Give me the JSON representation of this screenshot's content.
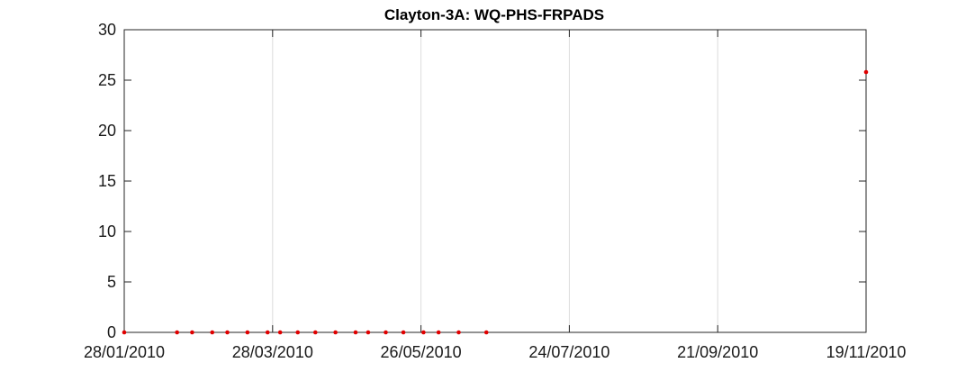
{
  "chart_data": {
    "type": "scatter",
    "title": "Clayton-3A: WQ-PHS-FRPADS",
    "xlabel": "",
    "ylabel": "",
    "x_axis_type": "date",
    "xlim": [
      "2010-01-28",
      "2010-11-19"
    ],
    "ylim": [
      0,
      30
    ],
    "x_ticks": [
      "2010-01-28",
      "2010-03-28",
      "2010-05-26",
      "2010-07-24",
      "2010-09-21",
      "2010-11-19"
    ],
    "x_tick_labels": [
      "28/01/2010",
      "28/03/2010",
      "26/05/2010",
      "24/07/2010",
      "21/09/2010",
      "19/11/2010"
    ],
    "y_ticks": [
      0,
      5,
      10,
      15,
      20,
      25,
      30
    ],
    "grid": true,
    "legend": "none",
    "marker_color": "#e00000",
    "series": [
      {
        "points": [
          {
            "x": "2010-01-28",
            "y": 0
          },
          {
            "x": "2010-02-18",
            "y": 0
          },
          {
            "x": "2010-02-24",
            "y": 0
          },
          {
            "x": "2010-03-04",
            "y": 0
          },
          {
            "x": "2010-03-10",
            "y": 0
          },
          {
            "x": "2010-03-18",
            "y": 0
          },
          {
            "x": "2010-03-26",
            "y": 0
          },
          {
            "x": "2010-03-31",
            "y": 0
          },
          {
            "x": "2010-04-07",
            "y": 0
          },
          {
            "x": "2010-04-14",
            "y": 0
          },
          {
            "x": "2010-04-22",
            "y": 0
          },
          {
            "x": "2010-04-30",
            "y": 0
          },
          {
            "x": "2010-05-05",
            "y": 0
          },
          {
            "x": "2010-05-12",
            "y": 0
          },
          {
            "x": "2010-05-19",
            "y": 0
          },
          {
            "x": "2010-05-27",
            "y": 0
          },
          {
            "x": "2010-06-02",
            "y": 0
          },
          {
            "x": "2010-06-10",
            "y": 0
          },
          {
            "x": "2010-06-21",
            "y": 0
          },
          {
            "x": "2010-11-19",
            "y": 25.8
          }
        ]
      }
    ]
  }
}
